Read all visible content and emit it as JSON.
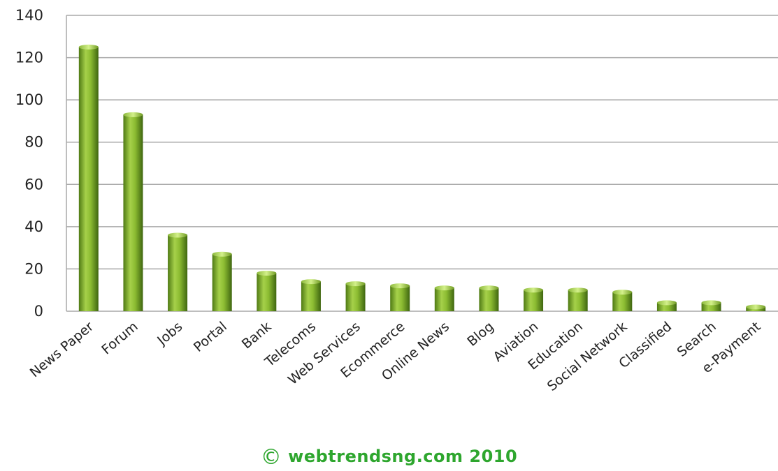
{
  "chart_data": {
    "type": "bar",
    "title": "",
    "xlabel": "",
    "ylabel": "",
    "ylim": [
      0,
      140
    ],
    "yticks": [
      0,
      20,
      40,
      60,
      80,
      100,
      120,
      140
    ],
    "grid": true,
    "legend": "none",
    "bar_color": "#7aa82a",
    "categories": [
      "News Paper",
      "Forum",
      "Jobs",
      "Portal",
      "Bank",
      "Telecoms",
      "Web Services",
      "Ecommerce",
      "Online News",
      "Blog",
      "Aviation",
      "Education",
      "Social Network",
      "Classified",
      "Search",
      "e-Payment"
    ],
    "values": [
      125,
      93,
      36,
      27,
      18,
      14,
      13,
      12,
      11,
      11,
      10,
      10,
      9,
      4,
      4,
      2
    ]
  },
  "credit": {
    "symbol": "©",
    "text": "webtrendsng.com 2010",
    "color": "#2ea62e"
  }
}
